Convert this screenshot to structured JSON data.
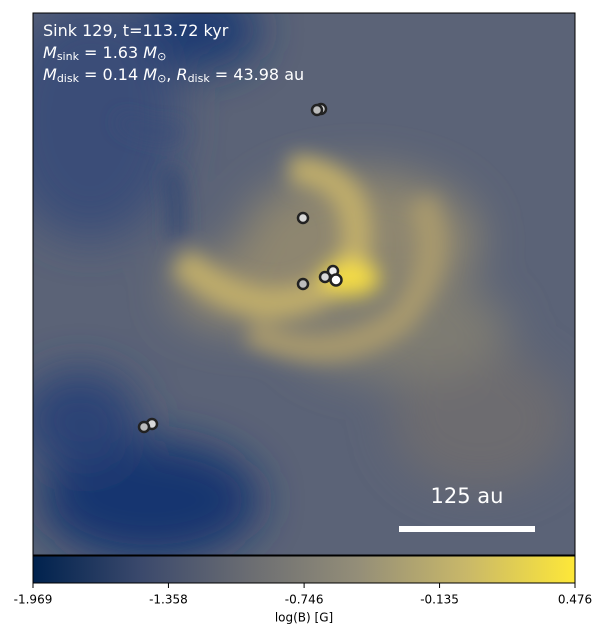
{
  "chart_data": {
    "type": "image",
    "annotations": [
      [
        {
          "text": "Sink 129, t=113.72 kyr"
        }
      ],
      [
        {
          "text": "M",
          "italic": true
        },
        {
          "text": "sink",
          "sub": true
        },
        {
          "text": " = 1.63 "
        },
        {
          "text": "M",
          "italic": true
        },
        {
          "text": "⊙",
          "sub": true
        }
      ],
      [
        {
          "text": "M",
          "italic": true
        },
        {
          "text": "disk",
          "sub": true
        },
        {
          "text": " = 0.14 "
        },
        {
          "text": "M",
          "italic": true
        },
        {
          "text": "⊙",
          "sub": true
        },
        {
          "text": ", "
        },
        {
          "text": "R",
          "italic": true
        },
        {
          "text": "disk",
          "sub": true
        },
        {
          "text": " = 43.98 au"
        }
      ]
    ],
    "scale_bar_label": "125 au",
    "colorbar_label": "log(B) [G]",
    "clim": [
      -1.969,
      0.476
    ],
    "cticks": [
      -1.969,
      -1.358,
      -0.746,
      -0.135,
      0.476
    ],
    "colormap": [
      "#00224e",
      "#3b496c",
      "#6b6d72",
      "#948e78",
      "#c9b869",
      "#fee838"
    ]
  }
}
